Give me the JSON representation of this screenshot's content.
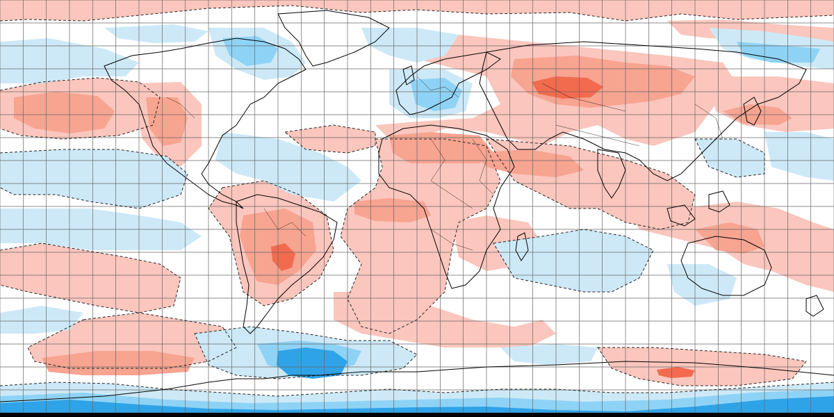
{
  "map": {
    "projection": "equirectangular",
    "grid_spacing_deg": 10,
    "colors": {
      "background": "#ffffff",
      "warm_1": "#fbc6bd",
      "warm_2": "#f7a491",
      "warm_3": "#f26b4e",
      "cool_1": "#cde9f7",
      "cool_2": "#8ed3f5",
      "cool_3": "#2fa3e8",
      "gridline": "#666666",
      "coastline": "#000000",
      "border": "#000000",
      "contour": "#222222"
    }
  }
}
